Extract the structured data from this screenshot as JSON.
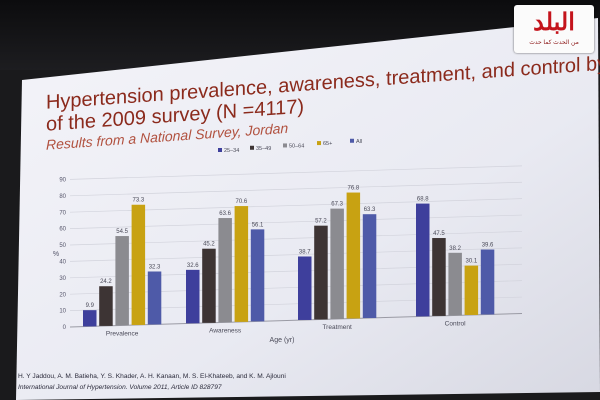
{
  "slide": {
    "title_line1": "Hypertension prevalence, awareness, treatment, and control by a",
    "title_line2": "of the 2009 survey (N =4117)",
    "subtitle": "Results from a National Survey, Jordan",
    "citation_authors": "H. Y Jaddou, A. M. Batieha, Y. S. Khader, A. H. Kanaan, M. S. El-Khateeb, and K. M. Ajlouni",
    "citation_journal": "International Journal of Hypertension. Volume 2011, Article ID 828797"
  },
  "logo": {
    "text": "البلد",
    "tagline": "من الحدث كما حدث"
  },
  "colors": {
    "slide_bg": "#eeeff6",
    "title": "#8b2a1c",
    "subtitle": "#b1513f",
    "series": [
      "#3e3f9c",
      "#3d3434",
      "#8b8b90",
      "#c8a212",
      "#4e5aa8"
    ]
  },
  "chart_data": {
    "type": "bar",
    "title": "",
    "xlabel": "Age (yr)",
    "ylabel": "%",
    "ylim": [
      0,
      90
    ],
    "yticks": [
      0,
      10,
      20,
      30,
      40,
      50,
      60,
      70,
      80,
      90
    ],
    "grid": true,
    "legend_position": "top-right",
    "categories": [
      "Prevalence",
      "Awareness",
      "Treatment",
      "Control"
    ],
    "series": [
      {
        "name": "25–34",
        "values": [
          9.9,
          32.6,
          38.7,
          68.8
        ]
      },
      {
        "name": "35–49",
        "values": [
          24.2,
          45.2,
          57.2,
          47.5
        ]
      },
      {
        "name": "50–64",
        "values": [
          54.5,
          63.6,
          67.3,
          38.2
        ]
      },
      {
        "name": "65+",
        "values": [
          73.3,
          70.6,
          76.8,
          30.1
        ]
      },
      {
        "name": "All",
        "values": [
          32.3,
          56.1,
          63.3,
          39.6
        ]
      }
    ],
    "data_labels": [
      [
        "9.9",
        "32.6",
        "38.7",
        "68.8"
      ],
      [
        "24.2",
        "45.2",
        "57.2",
        "47.5"
      ],
      [
        "54.5",
        "63.6",
        "67.3",
        "38.2"
      ],
      [
        "73.3",
        "70.6",
        "76.8",
        "30.1"
      ],
      [
        "32.3",
        "56.1",
        "63.3",
        "39.6"
      ]
    ]
  }
}
